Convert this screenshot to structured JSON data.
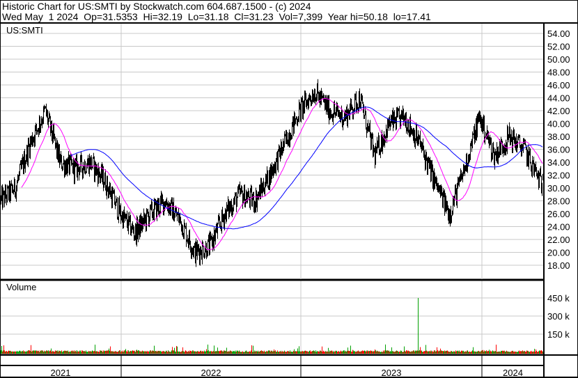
{
  "header": {
    "line1": "Historic Chart for US:SMTI by Stockwatch.com 604.687.1500 - (c) 2024",
    "line2": "Wed May  1 2024  Op=31.5353  Hi=32.19  Lo=31.18  Cl=31.23  Vol=7,399  Year hi=50.18  lo=17.41"
  },
  "chart_data": {
    "type": "line",
    "symbol_label": "US:SMTI",
    "volume_label": "Volume",
    "price_axis": {
      "ylim": [
        16,
        56
      ],
      "ticks": [
        "54.00",
        "52.00",
        "50.00",
        "48.00",
        "46.00",
        "44.00",
        "42.00",
        "40.00",
        "38.00",
        "36.00",
        "34.00",
        "32.00",
        "30.00",
        "28.00",
        "26.00",
        "24.00",
        "22.00",
        "20.00",
        "18.00"
      ]
    },
    "volume_axis": {
      "ticks": [
        "450 k",
        "300 k",
        "150 k"
      ],
      "ylim": [
        0,
        500000
      ]
    },
    "years": [
      "2021",
      "2022",
      "2023",
      "2024"
    ],
    "months": [
      "2021-05",
      "2021-06",
      "2021-07",
      "2021-08",
      "2021-09",
      "2021-10",
      "2021-11",
      "2021-12",
      "2022-01",
      "2022-02",
      "2022-03",
      "2022-04",
      "2022-05",
      "2022-06",
      "2022-07",
      "2022-08",
      "2022-09",
      "2022-10",
      "2022-11",
      "2022-12",
      "2023-01",
      "2023-02",
      "2023-03",
      "2023-04",
      "2023-05",
      "2023-06",
      "2023-07",
      "2023-08",
      "2023-09",
      "2023-10",
      "2023-11",
      "2023-12",
      "2024-01",
      "2024-02",
      "2024-03",
      "2024-04",
      "2024-05"
    ],
    "monthly_close": [
      28,
      30,
      37,
      42,
      34,
      33,
      34,
      31,
      26,
      23,
      26,
      28,
      25,
      20,
      21,
      26,
      29,
      28,
      32,
      37,
      42,
      45,
      42,
      41,
      44,
      35,
      40,
      41,
      37,
      31,
      26,
      33,
      41,
      35,
      38,
      36,
      31.23
    ],
    "volume_spike": {
      "month": "2023-08",
      "value": 450000
    },
    "colors": {
      "price": "#000000",
      "ma_short": "#ff00ff",
      "ma_long": "#0000ff",
      "vol_up": "#00a000",
      "vol_down": "#ff0000",
      "grid": "#c8c8c8"
    }
  }
}
